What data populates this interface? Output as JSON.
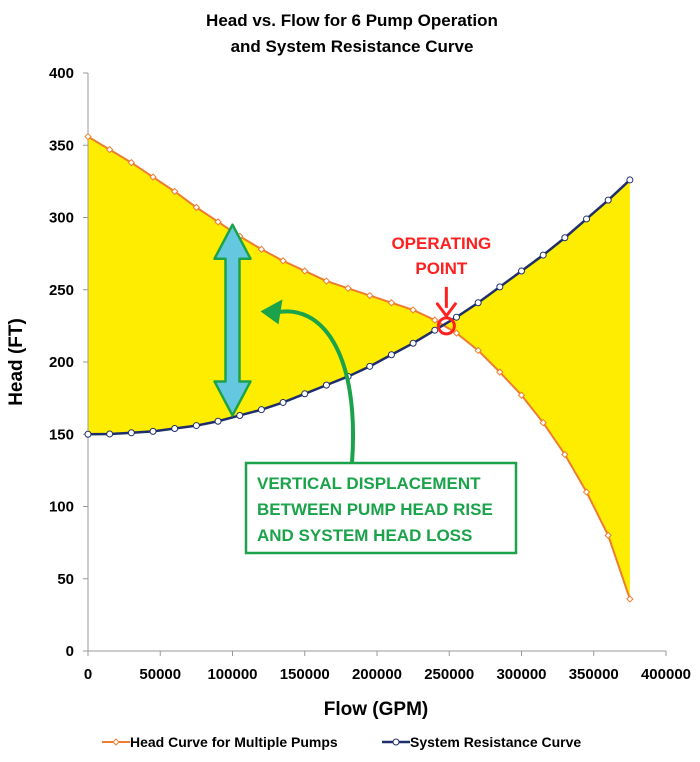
{
  "chart_data": {
    "type": "line",
    "title_line1": "Head vs. Flow for 6 Pump Operation",
    "title_line2": "and System Resistance Curve",
    "xlabel": "Flow (GPM)",
    "ylabel": "Head (FT)",
    "xlim": [
      0,
      400000
    ],
    "ylim": [
      0,
      400
    ],
    "x_ticks": [
      0,
      50000,
      100000,
      150000,
      200000,
      250000,
      300000,
      350000,
      400000
    ],
    "y_ticks": [
      0,
      50,
      100,
      150,
      200,
      250,
      300,
      350,
      400
    ],
    "grid": false,
    "legend_position": "bottom",
    "series": [
      {
        "name": "Head Curve for Multiple Pumps",
        "color": "#ed7d31",
        "marker": "diamond",
        "x": [
          0,
          15000,
          30000,
          45000,
          60000,
          75000,
          90000,
          105000,
          120000,
          135000,
          150000,
          165000,
          180000,
          195000,
          210000,
          225000,
          240000,
          255000,
          270000,
          285000,
          300000,
          315000,
          330000,
          345000,
          360000,
          375000
        ],
        "y": [
          356,
          347,
          338,
          328,
          318,
          307,
          297,
          287,
          278,
          270,
          263,
          256,
          251,
          246,
          241,
          236,
          229,
          220,
          208,
          193,
          177,
          158,
          136,
          110,
          80,
          36
        ]
      },
      {
        "name": "System Resistance Curve",
        "color": "#1f2f6b",
        "marker": "circle",
        "x": [
          0,
          15000,
          30000,
          45000,
          60000,
          75000,
          90000,
          105000,
          120000,
          135000,
          150000,
          165000,
          180000,
          195000,
          210000,
          225000,
          240000,
          255000,
          270000,
          285000,
          300000,
          315000,
          330000,
          345000,
          360000,
          375000
        ],
        "y": [
          150,
          150.2,
          151,
          152,
          154,
          156,
          159,
          163,
          167,
          172,
          178,
          184,
          190,
          197,
          205,
          213,
          222,
          231,
          241,
          252,
          263,
          274,
          286,
          299,
          312,
          326
        ]
      }
    ],
    "fill_color": "#ffed00",
    "arrow_color": "#66c8e0",
    "arrow_x": 100000,
    "arrow_y_top": 295,
    "arrow_y_bottom": 163,
    "operating_point": {
      "x": 248000,
      "y": 225
    },
    "annotations": {
      "operating_point_line1": "OPERATING",
      "operating_point_line2": "POINT",
      "displacement_line1": "VERTICAL DISPLACEMENT",
      "displacement_line2": "BETWEEN PUMP HEAD RISE",
      "displacement_line3": "AND SYSTEM HEAD LOSS",
      "operating_color": "#ff2020",
      "displacement_color": "#1aa34a"
    }
  }
}
